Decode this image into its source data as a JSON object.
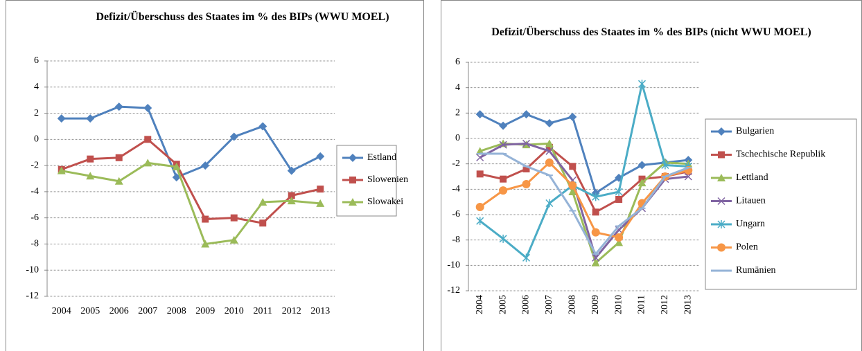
{
  "chart_data": [
    {
      "type": "line",
      "title": "Defizit/Überschuss des Staates im % des BIPs (WWU MOEL)",
      "categories": [
        "2004",
        "2005",
        "2006",
        "2007",
        "2008",
        "2009",
        "2010",
        "2011",
        "2012",
        "2013"
      ],
      "series": [
        {
          "name": "Estland",
          "color": "#4f81bd",
          "marker": "diamond",
          "values": [
            1.6,
            1.6,
            2.5,
            2.4,
            -2.9,
            -2.0,
            0.2,
            1.0,
            -2.4,
            -1.3
          ]
        },
        {
          "name": "Slowenien",
          "color": "#c0504d",
          "marker": "square",
          "values": [
            -2.3,
            -1.5,
            -1.4,
            0.0,
            -1.9,
            -6.1,
            -6.0,
            -6.4,
            -4.3,
            -3.8
          ]
        },
        {
          "name": "Slowakei",
          "color": "#9bbb59",
          "marker": "triangle",
          "values": [
            -2.4,
            -2.8,
            -3.2,
            -1.8,
            -2.1,
            -8.0,
            -7.7,
            -4.8,
            -4.7,
            -4.9
          ]
        }
      ],
      "ylim": [
        -12,
        6
      ],
      "yticks": [
        -12,
        -10,
        -8,
        -6,
        -4,
        -2,
        0,
        2,
        4,
        6
      ],
      "grid": true,
      "legend": "right"
    },
    {
      "type": "line",
      "title": "Defizit/Überschuss des Staates im % des BIPs (nicht WWU MOEL)",
      "categories": [
        "2004",
        "2005",
        "2006",
        "2007",
        "2008",
        "2009",
        "2010",
        "2011",
        "2012",
        "2013"
      ],
      "series": [
        {
          "name": "Bulgarien",
          "color": "#4f81bd",
          "marker": "diamond",
          "values": [
            1.9,
            1.0,
            1.9,
            1.2,
            1.7,
            -4.3,
            -3.1,
            -2.1,
            -1.9,
            -1.7
          ]
        },
        {
          "name": "Tschechische Republik",
          "color": "#c0504d",
          "marker": "square",
          "values": [
            -2.8,
            -3.2,
            -2.4,
            -0.7,
            -2.2,
            -5.8,
            -4.8,
            -3.2,
            -3.0,
            -2.6
          ]
        },
        {
          "name": "Lettland",
          "color": "#9bbb59",
          "marker": "triangle",
          "values": [
            -1.0,
            -0.4,
            -0.5,
            -0.4,
            -4.2,
            -9.8,
            -8.2,
            -3.5,
            -1.9,
            -2.0
          ]
        },
        {
          "name": "Litauen",
          "color": "#8064a2",
          "marker": "x",
          "values": [
            -1.5,
            -0.5,
            -0.4,
            -1.0,
            -3.3,
            -9.4,
            -7.2,
            -5.5,
            -3.2,
            -3.0
          ]
        },
        {
          "name": "Ungarn",
          "color": "#4bacc6",
          "marker": "star",
          "values": [
            -6.5,
            -7.9,
            -9.4,
            -5.1,
            -3.7,
            -4.6,
            -4.2,
            4.3,
            -2.1,
            -2.2
          ]
        },
        {
          "name": "Polen",
          "color": "#f79646",
          "marker": "circle",
          "values": [
            -5.4,
            -4.1,
            -3.6,
            -1.9,
            -3.7,
            -7.4,
            -7.8,
            -5.1,
            -3.0,
            -2.5
          ]
        },
        {
          "name": "Rumänien",
          "color": "#95b3d7",
          "marker": "plus",
          "values": [
            -1.2,
            -1.2,
            -2.2,
            -2.9,
            -5.7,
            -9.1,
            -6.9,
            -5.5,
            -3.0,
            -2.3
          ]
        }
      ],
      "ylim": [
        -12,
        6
      ],
      "yticks": [
        -12,
        -10,
        -8,
        -6,
        -4,
        -2,
        0,
        2,
        4,
        6
      ],
      "grid": true,
      "legend": "right"
    }
  ]
}
